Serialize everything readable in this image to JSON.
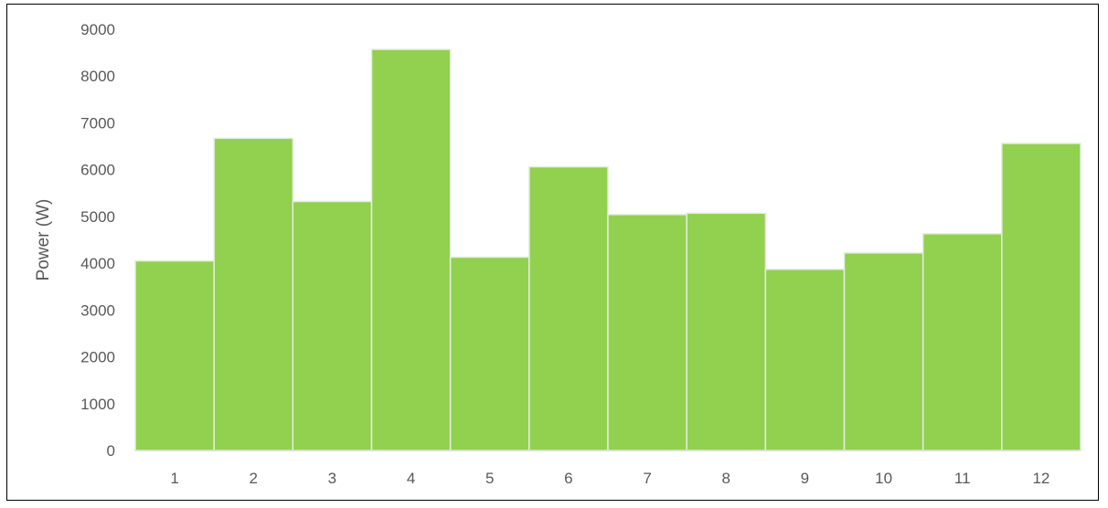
{
  "chart_data": {
    "type": "bar",
    "categories": [
      "1",
      "2",
      "3",
      "4",
      "5",
      "6",
      "7",
      "8",
      "9",
      "10",
      "11",
      "12"
    ],
    "values": [
      4050,
      6670,
      5320,
      8570,
      4130,
      6060,
      5040,
      5070,
      3870,
      4220,
      4630,
      6560
    ],
    "title": "",
    "xlabel": "",
    "ylabel": "Power (W)",
    "ylim": [
      0,
      9000
    ],
    "yticks": [
      "0",
      "1000",
      "2000",
      "3000",
      "4000",
      "5000",
      "6000",
      "7000",
      "8000",
      "9000"
    ],
    "grid": false,
    "legend": "none",
    "bar_color": "#92D050",
    "bar_edge_color": "#E2EFD9",
    "axis_color": "#D9D9D9",
    "text_color": "#595959"
  }
}
